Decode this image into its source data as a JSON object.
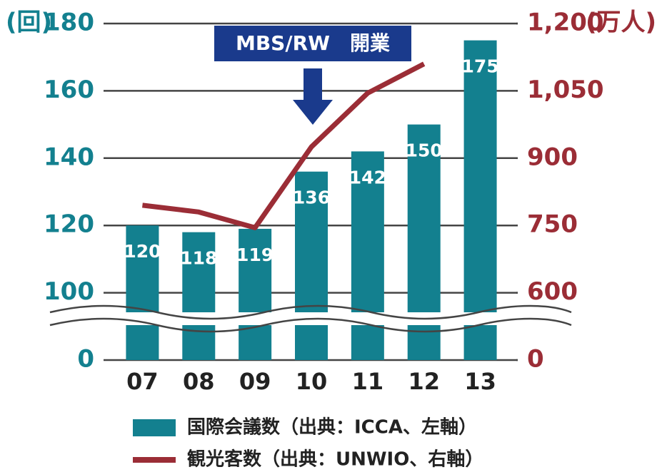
{
  "chart_data": {
    "type": "bar",
    "annotation": "MBS/RW　開業",
    "y_unit": "(回)",
    "y2_unit": "(万人)",
    "categories": [
      "07",
      "08",
      "09",
      "10",
      "11",
      "12",
      "13"
    ],
    "series": [
      {
        "name": "国際会議数（出典：ICCA、左軸）",
        "type": "bar",
        "color": "#13808f",
        "values": [
          120,
          118,
          119,
          136,
          142,
          150,
          175
        ]
      },
      {
        "name": "観光客数（出典：UNWIO、右軸）",
        "type": "line",
        "axis": "y2",
        "color": "#9b2d36",
        "values": [
          795,
          780,
          745,
          925,
          1045,
          1110,
          null
        ]
      }
    ],
    "ylim": [
      0,
      180
    ],
    "yticks": [
      0,
      100,
      120,
      140,
      160,
      180
    ],
    "y2lim": [
      0,
      1200
    ],
    "y2ticks": [
      0,
      600,
      750,
      900,
      {
        "value": 1050,
        "label": "1,050"
      },
      {
        "value": 1200,
        "label": "1,200"
      }
    ],
    "axis_break": true,
    "grid": true
  }
}
